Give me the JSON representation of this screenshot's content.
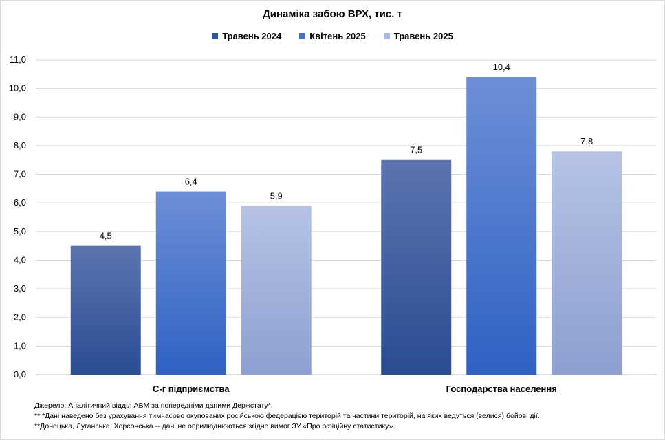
{
  "chart_data": {
    "type": "bar",
    "title": "Динаміка забою ВРХ, тис. т",
    "categories": [
      "С-г підприємства",
      "Господарства населення"
    ],
    "series": [
      {
        "name": "Травень 2024",
        "values": [
          4.5,
          7.5
        ],
        "label_text": [
          "4,5",
          "7,5"
        ],
        "color_top": "#5b74b0",
        "color_bottom": "#2a4c93",
        "legend_color": "#2f5597"
      },
      {
        "name": "Квітень 2025",
        "values": [
          6.4,
          10.4
        ],
        "label_text": [
          "6,4",
          "10,4"
        ],
        "color_top": "#6d8fd6",
        "color_bottom": "#2f61c4",
        "legend_color": "#4472c4"
      },
      {
        "name": "Травень 2025",
        "values": [
          5.9,
          7.8
        ],
        "label_text": [
          "5,9",
          "7,8"
        ],
        "color_top": "#b6c3e6",
        "color_bottom": "#8e9fd0",
        "legend_color": "#a9b8e0"
      }
    ],
    "ylim": [
      0,
      11
    ],
    "yticks": [
      "0,0",
      "1,0",
      "2,0",
      "3,0",
      "4,0",
      "5,0",
      "6,0",
      "7,0",
      "8,0",
      "9,0",
      "10,0",
      "11,0"
    ],
    "grid": true,
    "legend_position": "top"
  },
  "notes": [
    "Джерело:  Аналітичний відділ АВМ за попередніми даними Держстату*,",
    "** *Дані наведено  без урахування тимчасово окупованих російською федерацією територій та частини територій, на яких ведуться  (велися) бойові дії.",
    "**Донецька,  Луганська, Херсонська -- дані не оприлюднюються  згідно вимог ЗУ «Про офіційну статистику»."
  ]
}
